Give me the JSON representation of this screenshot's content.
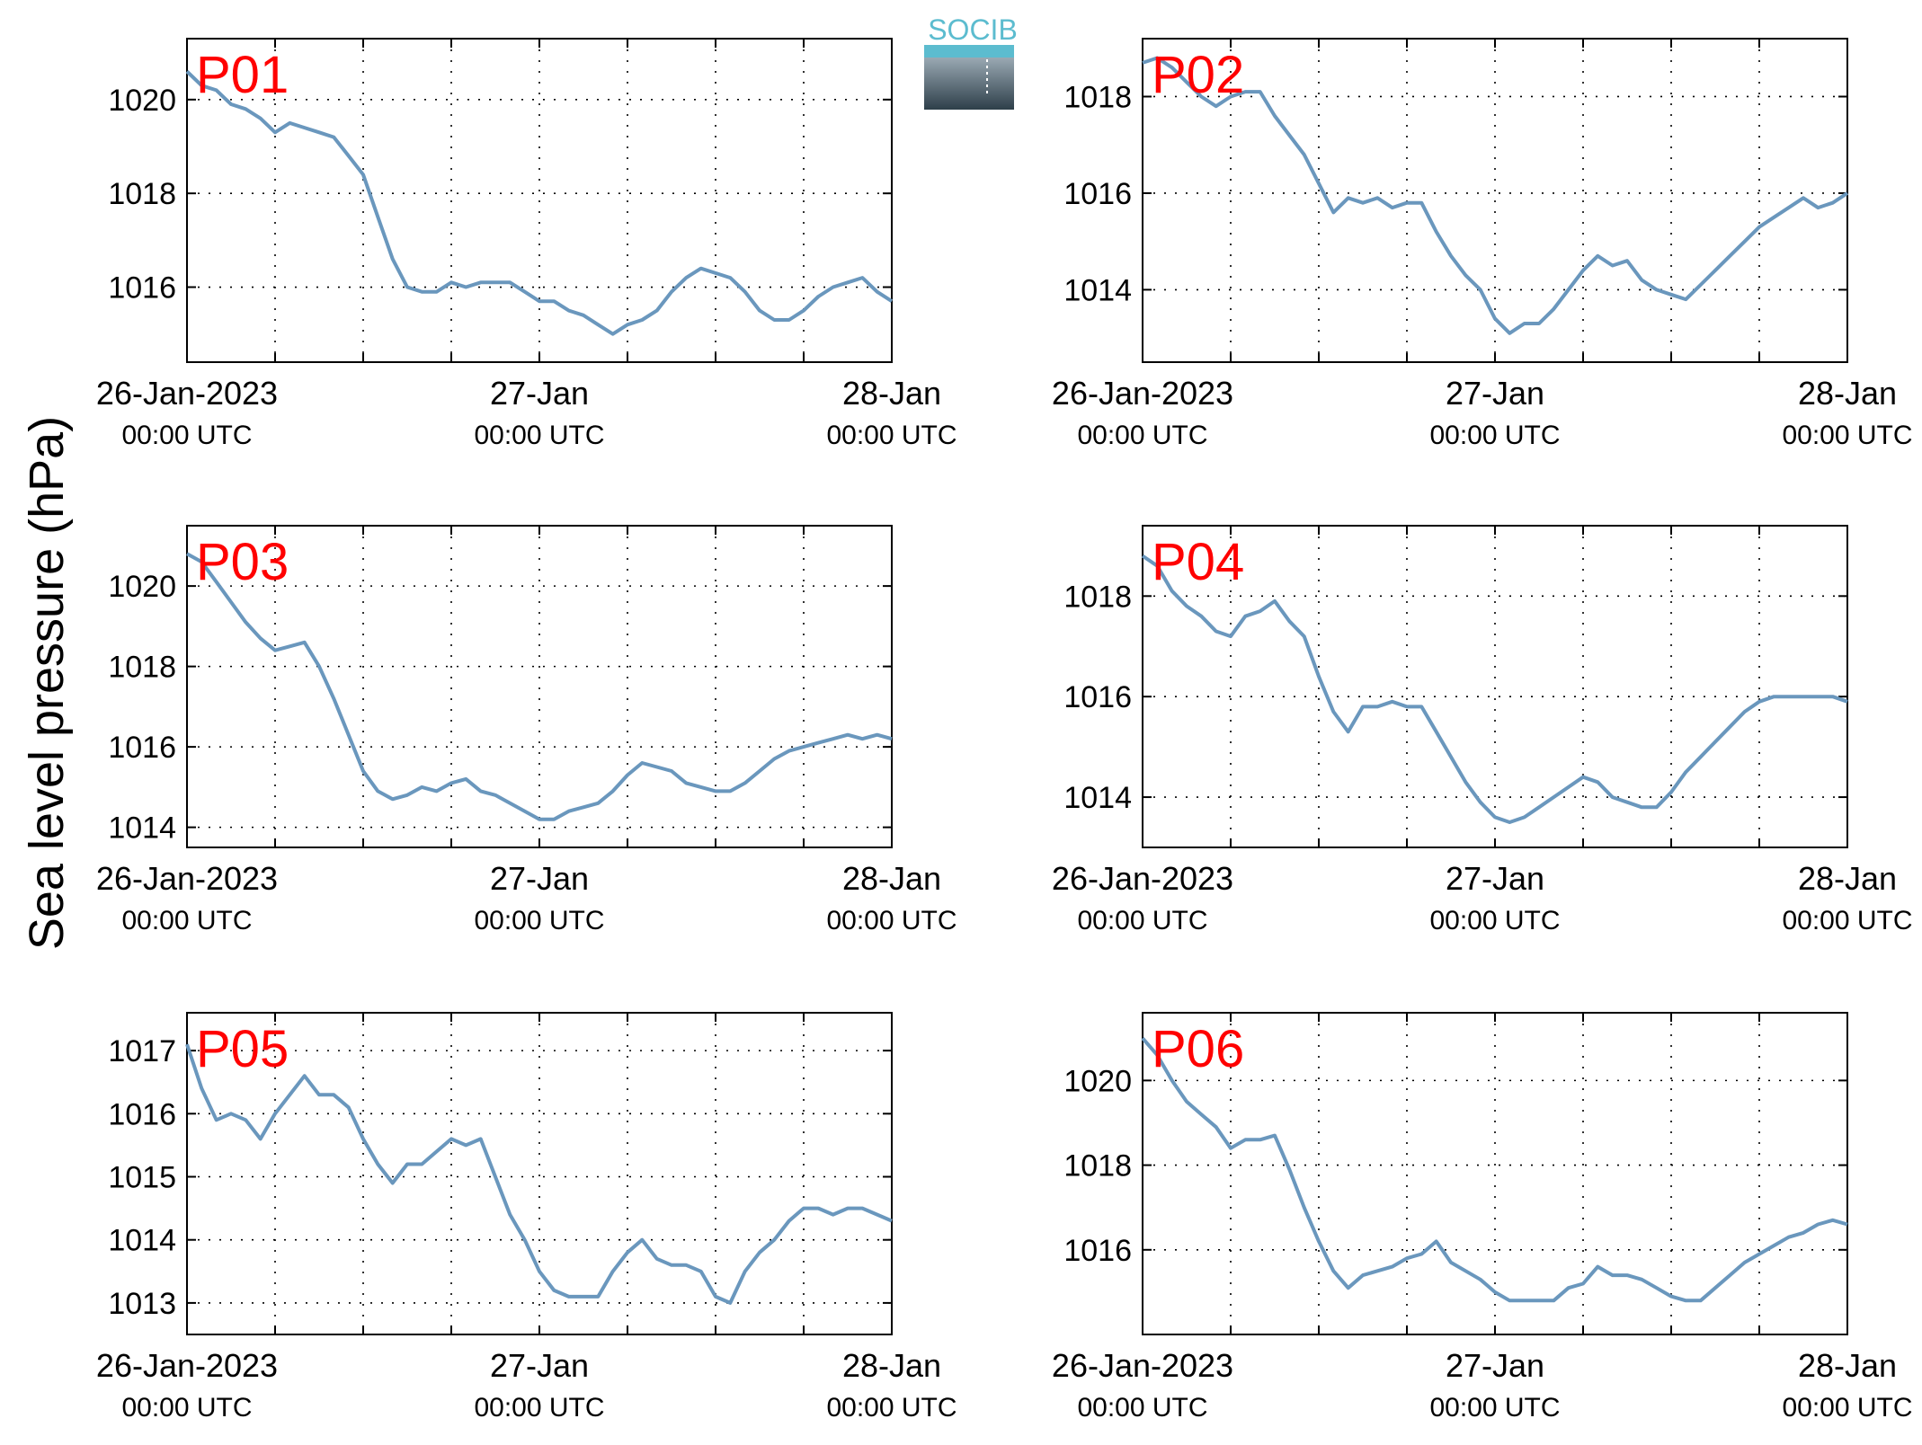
{
  "figure": {
    "ylabel": "Sea level pressure (hPa)",
    "logo_text": "SOCIB",
    "colors": {
      "line": "#6a97bd",
      "panel_title": "#ff0000",
      "axes": "#000000",
      "logo_top": "#5cbccf",
      "logo_bottom": "#2e3f4a"
    }
  },
  "chart_data": [
    {
      "type": "line",
      "title": "P01",
      "xlabel": "",
      "ylabel": "",
      "xlim": [
        "2023-01-26T00:00Z",
        "2023-01-28T00:00Z"
      ],
      "xticks": [
        {
          "line1": "26-Jan-2023",
          "line2": "00:00 UTC"
        },
        {
          "line1": "27-Jan",
          "line2": "00:00 UTC"
        },
        {
          "line1": "28-Jan",
          "line2": "00:00 UTC"
        }
      ],
      "ylim": [
        1014.4,
        1021.3
      ],
      "yticks": [
        1016,
        1018,
        1020
      ],
      "grid": true,
      "series": [
        {
          "x_hours": [
            0,
            1,
            2,
            3,
            4,
            5,
            6,
            7,
            8,
            9,
            10,
            11,
            12,
            13,
            14,
            15,
            16,
            17,
            18,
            19,
            20,
            21,
            22,
            23,
            24,
            25,
            26,
            27,
            28,
            29,
            30,
            31,
            32,
            33,
            34,
            35,
            36,
            37,
            38,
            39,
            40,
            41,
            42,
            43,
            44,
            45,
            46,
            47,
            48
          ],
          "values": [
            1020.6,
            1020.3,
            1020.2,
            1019.9,
            1019.8,
            1019.6,
            1019.3,
            1019.5,
            1019.4,
            1019.3,
            1019.2,
            1018.8,
            1018.4,
            1017.5,
            1016.6,
            1016.0,
            1015.9,
            1015.9,
            1016.1,
            1016.0,
            1016.1,
            1016.1,
            1016.1,
            1015.9,
            1015.7,
            1015.7,
            1015.5,
            1015.4,
            1015.2,
            1015.0,
            1015.2,
            1015.3,
            1015.5,
            1015.9,
            1016.2,
            1016.4,
            1016.3,
            1016.2,
            1015.9,
            1015.5,
            1015.3,
            1015.3,
            1015.5,
            1015.8,
            1016.0,
            1016.1,
            1016.2,
            1015.9,
            1015.7
          ]
        }
      ]
    },
    {
      "type": "line",
      "title": "P02",
      "xlabel": "",
      "ylabel": "",
      "xlim": [
        "2023-01-26T00:00Z",
        "2023-01-28T00:00Z"
      ],
      "xticks": [
        {
          "line1": "26-Jan-2023",
          "line2": "00:00 UTC"
        },
        {
          "line1": "27-Jan",
          "line2": "00:00 UTC"
        },
        {
          "line1": "28-Jan",
          "line2": "00:00 UTC"
        }
      ],
      "ylim": [
        1012.5,
        1019.2
      ],
      "yticks": [
        1014,
        1016,
        1018
      ],
      "grid": true,
      "series": [
        {
          "x_hours": [
            0,
            1,
            2,
            3,
            4,
            5,
            6,
            7,
            8,
            9,
            10,
            11,
            12,
            13,
            14,
            15,
            16,
            17,
            18,
            19,
            20,
            21,
            22,
            23,
            24,
            25,
            26,
            27,
            28,
            29,
            30,
            31,
            32,
            33,
            34,
            35,
            36,
            37,
            38,
            39,
            40,
            41,
            42,
            43,
            44,
            45,
            46,
            47,
            48
          ],
          "values": [
            1018.7,
            1018.8,
            1018.6,
            1018.3,
            1018.0,
            1017.8,
            1018.0,
            1018.1,
            1018.1,
            1017.6,
            1017.2,
            1016.8,
            1016.2,
            1015.6,
            1015.9,
            1015.8,
            1015.9,
            1015.7,
            1015.8,
            1015.8,
            1015.2,
            1014.7,
            1014.3,
            1014.0,
            1013.4,
            1013.1,
            1013.3,
            1013.3,
            1013.6,
            1014.0,
            1014.4,
            1014.7,
            1014.5,
            1014.6,
            1014.2,
            1014.0,
            1013.9,
            1013.8,
            1014.1,
            1014.4,
            1014.7,
            1015.0,
            1015.3,
            1015.5,
            1015.7,
            1015.9,
            1015.7,
            1015.8,
            1016.0
          ]
        }
      ]
    },
    {
      "type": "line",
      "title": "P03",
      "xlabel": "",
      "ylabel": "",
      "xlim": [
        "2023-01-26T00:00Z",
        "2023-01-28T00:00Z"
      ],
      "xticks": [
        {
          "line1": "26-Jan-2023",
          "line2": "00:00 UTC"
        },
        {
          "line1": "27-Jan",
          "line2": "00:00 UTC"
        },
        {
          "line1": "28-Jan",
          "line2": "00:00 UTC"
        }
      ],
      "ylim": [
        1013.5,
        1021.5
      ],
      "yticks": [
        1014,
        1016,
        1018,
        1020
      ],
      "grid": true,
      "series": [
        {
          "x_hours": [
            0,
            1,
            2,
            3,
            4,
            5,
            6,
            7,
            8,
            9,
            10,
            11,
            12,
            13,
            14,
            15,
            16,
            17,
            18,
            19,
            20,
            21,
            22,
            23,
            24,
            25,
            26,
            27,
            28,
            29,
            30,
            31,
            32,
            33,
            34,
            35,
            36,
            37,
            38,
            39,
            40,
            41,
            42,
            43,
            44,
            45,
            46,
            47,
            48
          ],
          "values": [
            1020.8,
            1020.6,
            1020.1,
            1019.6,
            1019.1,
            1018.7,
            1018.4,
            1018.5,
            1018.6,
            1018.0,
            1017.2,
            1016.3,
            1015.4,
            1014.9,
            1014.7,
            1014.8,
            1015.0,
            1014.9,
            1015.1,
            1015.2,
            1014.9,
            1014.8,
            1014.6,
            1014.4,
            1014.2,
            1014.2,
            1014.4,
            1014.5,
            1014.6,
            1014.9,
            1015.3,
            1015.6,
            1015.5,
            1015.4,
            1015.1,
            1015.0,
            1014.9,
            1014.9,
            1015.1,
            1015.4,
            1015.7,
            1015.9,
            1016.0,
            1016.1,
            1016.2,
            1016.3,
            1016.2,
            1016.3,
            1016.2
          ]
        }
      ]
    },
    {
      "type": "line",
      "title": "P04",
      "xlabel": "",
      "ylabel": "",
      "xlim": [
        "2023-01-26T00:00Z",
        "2023-01-28T00:00Z"
      ],
      "xticks": [
        {
          "line1": "26-Jan-2023",
          "line2": "00:00 UTC"
        },
        {
          "line1": "27-Jan",
          "line2": "00:00 UTC"
        },
        {
          "line1": "28-Jan",
          "line2": "00:00 UTC"
        }
      ],
      "ylim": [
        1013.0,
        1019.4
      ],
      "yticks": [
        1014,
        1016,
        1018
      ],
      "grid": true,
      "series": [
        {
          "x_hours": [
            0,
            1,
            2,
            3,
            4,
            5,
            6,
            7,
            8,
            9,
            10,
            11,
            12,
            13,
            14,
            15,
            16,
            17,
            18,
            19,
            20,
            21,
            22,
            23,
            24,
            25,
            26,
            27,
            28,
            29,
            30,
            31,
            32,
            33,
            34,
            35,
            36,
            37,
            38,
            39,
            40,
            41,
            42,
            43,
            44,
            45,
            46,
            47,
            48
          ],
          "values": [
            1018.8,
            1018.6,
            1018.1,
            1017.8,
            1017.6,
            1017.3,
            1017.2,
            1017.6,
            1017.7,
            1017.9,
            1017.5,
            1017.2,
            1016.4,
            1015.7,
            1015.3,
            1015.8,
            1015.8,
            1015.9,
            1015.8,
            1015.8,
            1015.3,
            1014.8,
            1014.3,
            1013.9,
            1013.6,
            1013.5,
            1013.6,
            1013.8,
            1014.0,
            1014.2,
            1014.4,
            1014.3,
            1014.0,
            1013.9,
            1013.8,
            1013.8,
            1014.1,
            1014.5,
            1014.8,
            1015.1,
            1015.4,
            1015.7,
            1015.9,
            1016.0,
            1016.0,
            1016.0,
            1016.0,
            1016.0,
            1015.9
          ]
        }
      ]
    },
    {
      "type": "line",
      "title": "P05",
      "xlabel": "",
      "ylabel": "",
      "xlim": [
        "2023-01-26T00:00Z",
        "2023-01-28T00:00Z"
      ],
      "xticks": [
        {
          "line1": "26-Jan-2023",
          "line2": "00:00 UTC"
        },
        {
          "line1": "27-Jan",
          "line2": "00:00 UTC"
        },
        {
          "line1": "28-Jan",
          "line2": "00:00 UTC"
        }
      ],
      "ylim": [
        1012.5,
        1017.6
      ],
      "yticks": [
        1013,
        1014,
        1015,
        1016,
        1017
      ],
      "grid": true,
      "series": [
        {
          "x_hours": [
            0,
            1,
            2,
            3,
            4,
            5,
            6,
            7,
            8,
            9,
            10,
            11,
            12,
            13,
            14,
            15,
            16,
            17,
            18,
            19,
            20,
            21,
            22,
            23,
            24,
            25,
            26,
            27,
            28,
            29,
            30,
            31,
            32,
            33,
            34,
            35,
            36,
            37,
            38,
            39,
            40,
            41,
            42,
            43,
            44,
            45,
            46,
            47,
            48
          ],
          "values": [
            1017.1,
            1016.4,
            1015.9,
            1016.0,
            1015.9,
            1015.6,
            1016.0,
            1016.3,
            1016.6,
            1016.3,
            1016.3,
            1016.1,
            1015.6,
            1015.2,
            1014.9,
            1015.2,
            1015.2,
            1015.4,
            1015.6,
            1015.5,
            1015.6,
            1015.0,
            1014.4,
            1014.0,
            1013.5,
            1013.2,
            1013.1,
            1013.1,
            1013.1,
            1013.5,
            1013.8,
            1014.0,
            1013.7,
            1013.6,
            1013.6,
            1013.5,
            1013.1,
            1013.0,
            1013.5,
            1013.8,
            1014.0,
            1014.3,
            1014.5,
            1014.5,
            1014.4,
            1014.5,
            1014.5,
            1014.4,
            1014.3
          ]
        }
      ]
    },
    {
      "type": "line",
      "title": "P06",
      "xlabel": "",
      "ylabel": "",
      "xlim": [
        "2023-01-26T00:00Z",
        "2023-01-28T00:00Z"
      ],
      "xticks": [
        {
          "line1": "26-Jan-2023",
          "line2": "00:00 UTC"
        },
        {
          "line1": "27-Jan",
          "line2": "00:00 UTC"
        },
        {
          "line1": "28-Jan",
          "line2": "00:00 UTC"
        }
      ],
      "ylim": [
        1014.0,
        1021.6
      ],
      "yticks": [
        1016,
        1018,
        1020
      ],
      "grid": true,
      "series": [
        {
          "x_hours": [
            0,
            1,
            2,
            3,
            4,
            5,
            6,
            7,
            8,
            9,
            10,
            11,
            12,
            13,
            14,
            15,
            16,
            17,
            18,
            19,
            20,
            21,
            22,
            23,
            24,
            25,
            26,
            27,
            28,
            29,
            30,
            31,
            32,
            33,
            34,
            35,
            36,
            37,
            38,
            39,
            40,
            41,
            42,
            43,
            44,
            45,
            46,
            47,
            48
          ],
          "values": [
            1021.0,
            1020.6,
            1020.0,
            1019.5,
            1019.2,
            1018.9,
            1018.4,
            1018.6,
            1018.6,
            1018.7,
            1017.9,
            1017.0,
            1016.2,
            1015.5,
            1015.1,
            1015.4,
            1015.5,
            1015.6,
            1015.8,
            1015.9,
            1016.2,
            1015.7,
            1015.5,
            1015.3,
            1015.0,
            1014.8,
            1014.8,
            1014.8,
            1014.8,
            1015.1,
            1015.2,
            1015.6,
            1015.4,
            1015.4,
            1015.3,
            1015.1,
            1014.9,
            1014.8,
            1014.8,
            1015.1,
            1015.4,
            1015.7,
            1015.9,
            1016.1,
            1016.3,
            1016.4,
            1016.6,
            1016.7,
            1016.6
          ]
        }
      ]
    }
  ]
}
